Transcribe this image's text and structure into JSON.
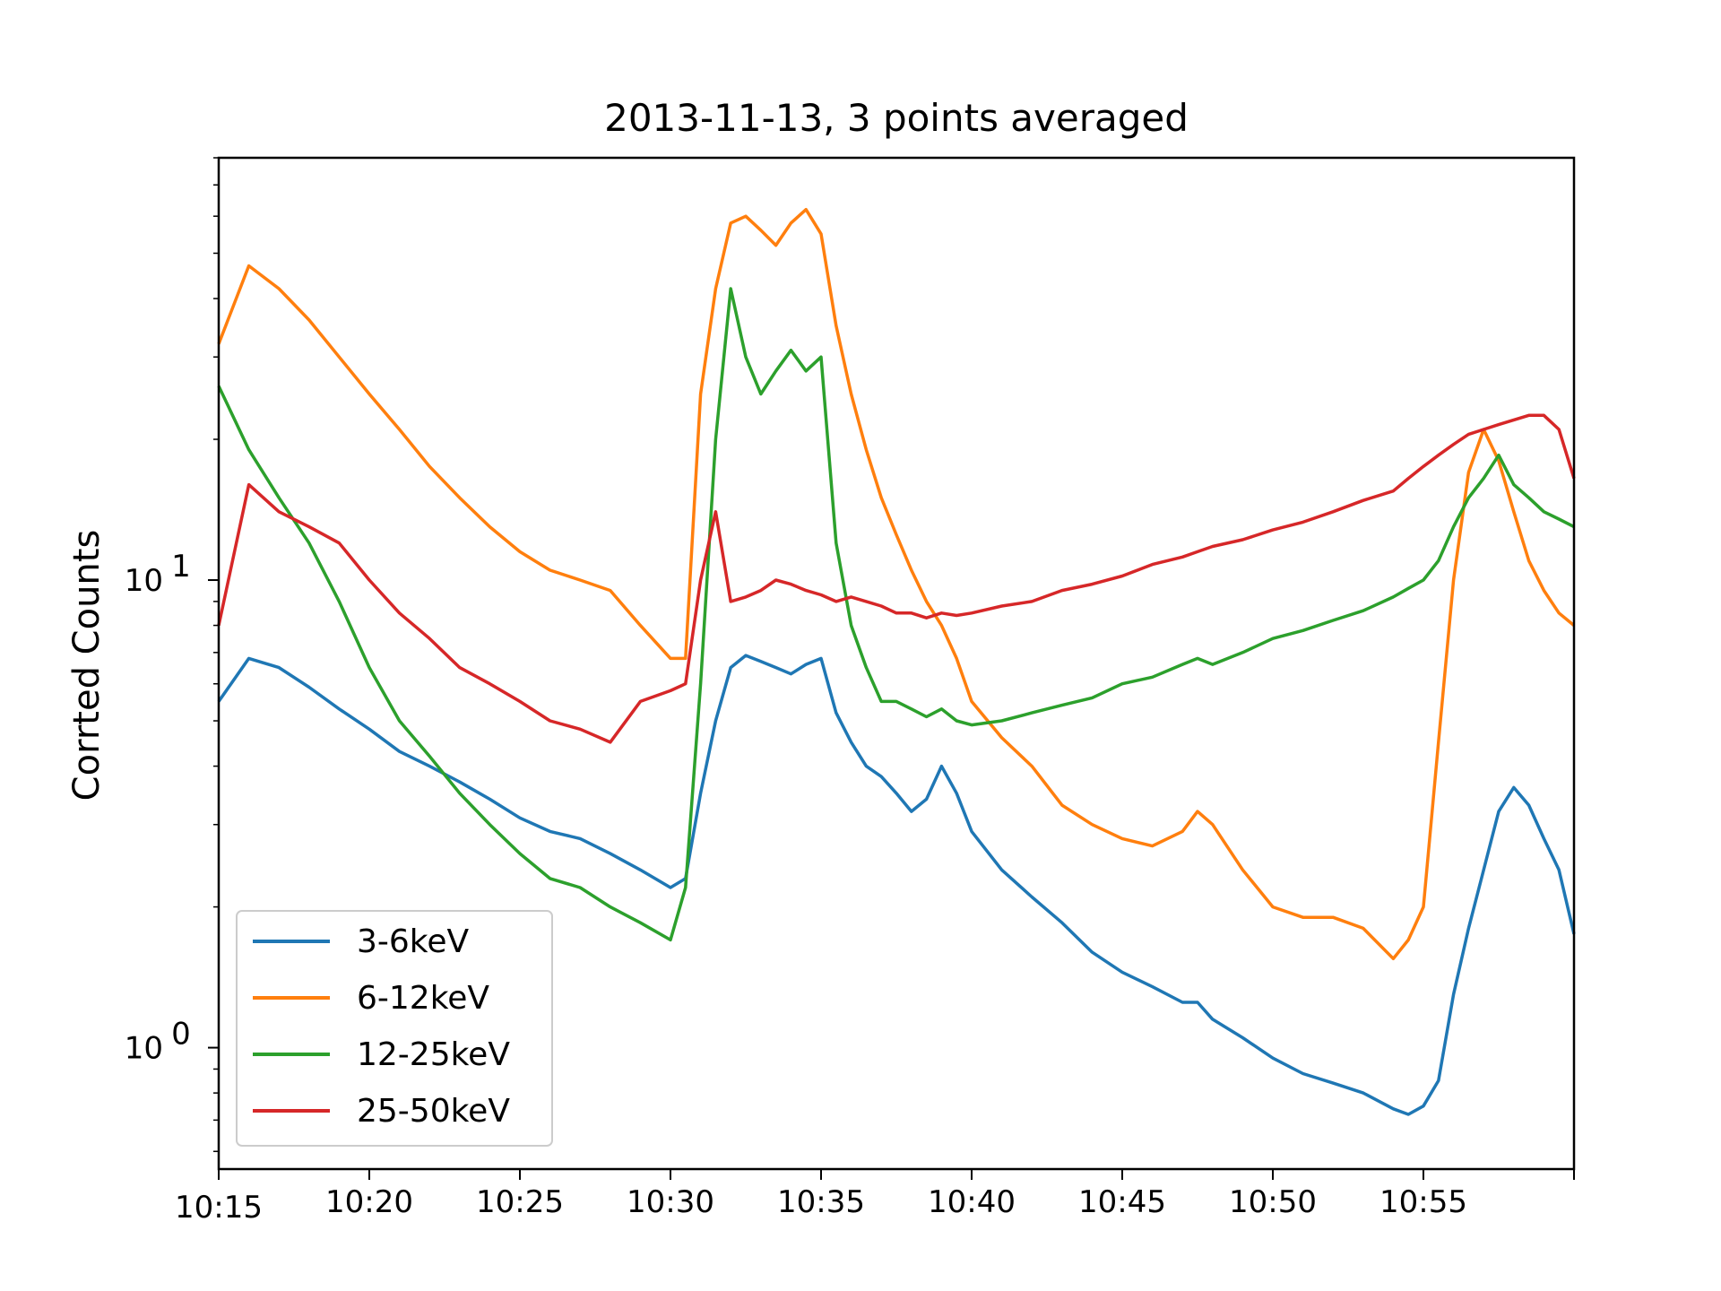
{
  "chart_data": {
    "type": "line",
    "title": "2013-11-13, 3 points averaged",
    "xlabel": "",
    "ylabel": "Corrted Counts",
    "yscale": "log",
    "ylim": [
      0.55,
      80
    ],
    "xlim": [
      "10:15",
      "10:60"
    ],
    "x_ticks": [
      "10:15",
      "10:20",
      "10:25",
      "10:30",
      "10:35",
      "10:40",
      "10:45",
      "10:50",
      "10:55"
    ],
    "y_ticks": [
      {
        "value": 1,
        "label_base": "10",
        "label_exp": "0"
      },
      {
        "value": 10,
        "label_base": "10",
        "label_exp": "1"
      }
    ],
    "grid": false,
    "legend_position": "lower-left",
    "x": [
      "10:15",
      "10:16",
      "10:17",
      "10:18",
      "10:19",
      "10:20",
      "10:21",
      "10:22",
      "10:23",
      "10:24",
      "10:25",
      "10:26",
      "10:27",
      "10:28",
      "10:29",
      "10:30",
      "10:30.5",
      "10:31",
      "10:31.5",
      "10:32",
      "10:32.5",
      "10:33",
      "10:33.5",
      "10:34",
      "10:34.5",
      "10:35",
      "10:35.5",
      "10:36",
      "10:36.5",
      "10:37",
      "10:37.5",
      "10:38",
      "10:38.5",
      "10:39",
      "10:39.5",
      "10:40",
      "10:41",
      "10:42",
      "10:43",
      "10:44",
      "10:45",
      "10:46",
      "10:47",
      "10:47.5",
      "10:48",
      "10:49",
      "10:50",
      "10:51",
      "10:52",
      "10:53",
      "10:54",
      "10:54.5",
      "10:55",
      "10:55.5",
      "10:56",
      "10:56.5",
      "10:57",
      "10:57.5",
      "10:58",
      "10:58.5",
      "10:59",
      "10:59.5",
      "10:60"
    ],
    "series": [
      {
        "name": "3-6keV",
        "color": "#1f77b4",
        "values": [
          5.5,
          6.8,
          6.5,
          5.9,
          5.3,
          4.8,
          4.3,
          4.0,
          3.7,
          3.4,
          3.1,
          2.9,
          2.8,
          2.6,
          2.4,
          2.2,
          2.3,
          3.5,
          5.0,
          6.5,
          6.9,
          6.7,
          6.5,
          6.3,
          6.6,
          6.8,
          5.2,
          4.5,
          4.0,
          3.8,
          3.5,
          3.2,
          3.4,
          4.0,
          3.5,
          2.9,
          2.4,
          2.1,
          1.85,
          1.6,
          1.45,
          1.35,
          1.25,
          1.25,
          1.15,
          1.05,
          0.95,
          0.88,
          0.84,
          0.8,
          0.74,
          0.72,
          0.75,
          0.85,
          1.3,
          1.8,
          2.4,
          3.2,
          3.6,
          3.3,
          2.8,
          2.4,
          1.75
        ]
      },
      {
        "name": "6-12keV",
        "color": "#ff7f0e",
        "values": [
          32,
          47,
          42,
          36,
          30,
          25,
          21,
          17.5,
          15,
          13,
          11.5,
          10.5,
          10,
          9.5,
          8.0,
          6.8,
          6.8,
          25,
          42,
          58,
          60,
          56,
          52,
          58,
          62,
          55,
          35,
          25,
          19,
          15,
          12.5,
          10.5,
          9.0,
          8.0,
          6.8,
          5.5,
          4.6,
          4.0,
          3.3,
          3.0,
          2.8,
          2.7,
          2.9,
          3.2,
          3.0,
          2.4,
          2.0,
          1.9,
          1.9,
          1.8,
          1.55,
          1.7,
          2.0,
          4.5,
          10,
          17,
          21,
          18,
          14,
          11,
          9.5,
          8.5,
          8.0
        ]
      },
      {
        "name": "12-25keV",
        "color": "#2ca02c",
        "values": [
          26,
          19,
          15,
          12,
          9,
          6.5,
          5.0,
          4.2,
          3.5,
          3.0,
          2.6,
          2.3,
          2.2,
          2.0,
          1.85,
          1.7,
          2.2,
          6,
          20,
          42,
          30,
          25,
          28,
          31,
          28,
          30,
          12,
          8,
          6.5,
          5.5,
          5.5,
          5.3,
          5.1,
          5.3,
          5.0,
          4.9,
          5.0,
          5.2,
          5.4,
          5.6,
          6.0,
          6.2,
          6.6,
          6.8,
          6.6,
          7.0,
          7.5,
          7.8,
          8.2,
          8.6,
          9.2,
          9.6,
          10,
          11,
          13,
          15,
          16.5,
          18.5,
          16,
          15,
          14,
          13.5,
          13
        ]
      },
      {
        "name": "25-50keV",
        "color": "#d62728",
        "values": [
          8.0,
          16,
          14,
          13,
          12,
          10,
          8.5,
          7.5,
          6.5,
          6.0,
          5.5,
          5.0,
          4.8,
          4.5,
          5.5,
          5.8,
          6.0,
          10,
          14,
          9,
          9.2,
          9.5,
          10,
          9.8,
          9.5,
          9.3,
          9.0,
          9.2,
          9.0,
          8.8,
          8.5,
          8.5,
          8.3,
          8.5,
          8.4,
          8.5,
          8.8,
          9.0,
          9.5,
          9.8,
          10.2,
          10.8,
          11.2,
          11.5,
          11.8,
          12.2,
          12.8,
          13.3,
          14,
          14.8,
          15.5,
          16.5,
          17.5,
          18.5,
          19.5,
          20.5,
          21,
          21.5,
          22,
          22.5,
          22.5,
          21,
          16.5
        ]
      }
    ]
  }
}
